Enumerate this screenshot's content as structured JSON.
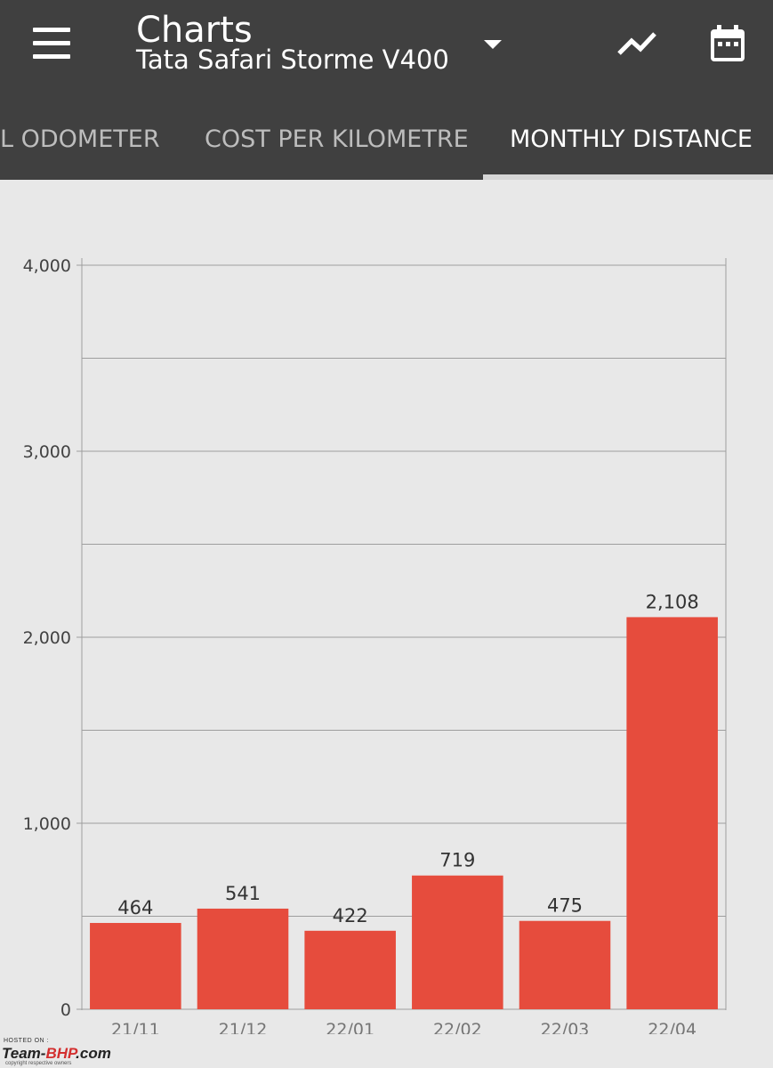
{
  "header": {
    "title": "Charts",
    "subtitle": "Tata Safari Storme V400",
    "icons": {
      "menu": "hamburger-menu-icon",
      "dropdown": "caret-down-icon",
      "trend": "trend-line-icon",
      "calendar": "calendar-icon"
    }
  },
  "tabs": [
    {
      "label": "L ODOMETER",
      "active": false
    },
    {
      "label": "COST PER KILOMETRE",
      "active": false
    },
    {
      "label": "MONTHLY DISTANCE",
      "active": true
    }
  ],
  "colors": {
    "appbar": "#404040",
    "bar": "#e64c3d",
    "background": "#e8e8e8",
    "grid": "#9e9e9e"
  },
  "chart_data": {
    "type": "bar",
    "categories": [
      "21/11",
      "21/12",
      "22/01",
      "22/02",
      "22/03",
      "22/04"
    ],
    "values": [
      464,
      541,
      422,
      719,
      475,
      2108
    ],
    "value_labels": [
      "464",
      "541",
      "422",
      "719",
      "475",
      "2,108"
    ],
    "yticks": [
      0,
      1000,
      2000,
      3000,
      4000
    ],
    "ytick_labels": [
      "0",
      "1,000",
      "2,000",
      "3,000",
      "4,000"
    ],
    "ylim": [
      0,
      4000
    ],
    "title": "",
    "xlabel": "",
    "ylabel": "",
    "grid": true
  },
  "watermark": {
    "top": "HOSTED ON :",
    "brand_a": "Team-",
    "brand_b": "BHP",
    "brand_c": ".com",
    "bottom": "copyright respective owners"
  }
}
